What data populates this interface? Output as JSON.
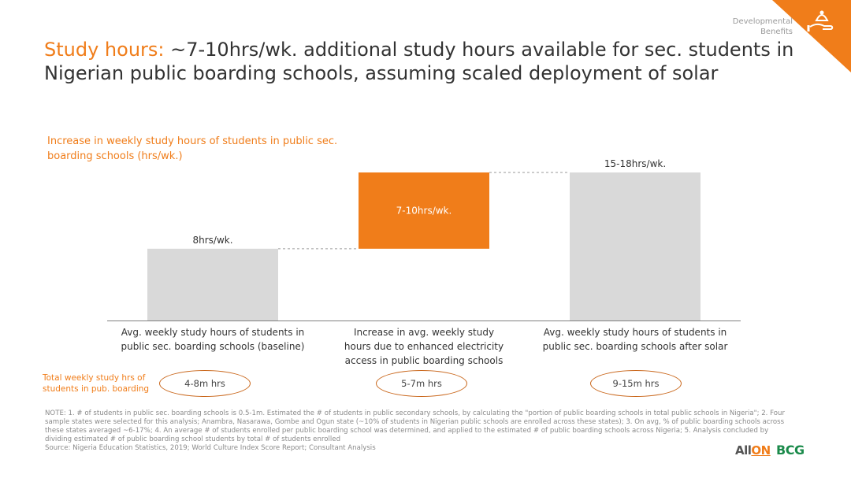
{
  "section_label": "Developmental Benefits",
  "title": {
    "accent": "Study hours:",
    "rest": " ~7-10hrs/wk. additional study hours available for sec. students in Nigerian public boarding schools, assuming scaled deployment of solar"
  },
  "colors": {
    "accent": "#f07d1a",
    "bar_gray": "#d9d9d9"
  },
  "chart_data": {
    "type": "bar",
    "subtype": "waterfall",
    "title": "Increase in weekly study hours of students in public sec. boarding schools (hrs/wk.)",
    "categories": [
      "Avg. weekly study hours of students in public sec. boarding schools (baseline)",
      "Increase in avg. weekly study hours due to enhanced electricity access in public boarding schools",
      "Avg. weekly study hours of students in public sec. boarding schools after solar"
    ],
    "category_lines": [
      [
        "Avg. weekly study hours of students in",
        "public sec. boarding schools (baseline)"
      ],
      [
        "Increase in avg. weekly study",
        "hours due to enhanced electricity",
        "access in public boarding schools"
      ],
      [
        "Avg. weekly study hours of students in",
        "public sec. boarding schools after solar"
      ]
    ],
    "bars": [
      {
        "base": 0,
        "value": 8,
        "label": "8hrs/wk.",
        "color": "#d9d9d9",
        "label_inside": false
      },
      {
        "base": 8,
        "value": 8.5,
        "label": "7-10hrs/wk.",
        "color": "#f07d1a",
        "label_inside": true
      },
      {
        "base": 0,
        "value": 16.5,
        "label": "15-18hrs/wk.",
        "color": "#d9d9d9",
        "label_inside": false
      }
    ],
    "ylim": [
      0,
      16.5
    ],
    "connectors": "dashed"
  },
  "totals": {
    "label": "Total weekly study hrs of students in pub. boarding",
    "values": [
      "4-8m hrs",
      "5-7m hrs",
      "9-15m hrs"
    ]
  },
  "note": "NOTE: 1. # of students in public sec. boarding schools is 0.5-1m. Estimated the # of students in public secondary schools, by calculating the \"portion of public boarding schools in total public schools in Nigeria\"; 2. Four sample states were selected for this analysis; Anambra, Nasarawa, Gombe and Ogun state (~10% of students in Nigerian public schools are enrolled across these states); 3. On avg, % of public boarding schools across these states averaged ~6-17%; 4. An average # of students enrolled per public boarding school was determined, and applied to the estimated # of public boarding schools across Nigeria; 5. Analysis concluded by dividing estimated # of public boarding school students by total # of students enrolled",
  "source": "Source: Nigeria Education Statistics, 2019; World Culture Index Score Report; Consultant Analysis",
  "logos": {
    "allon_main": "All",
    "allon_accent": "ON",
    "bcg": "BCG"
  }
}
